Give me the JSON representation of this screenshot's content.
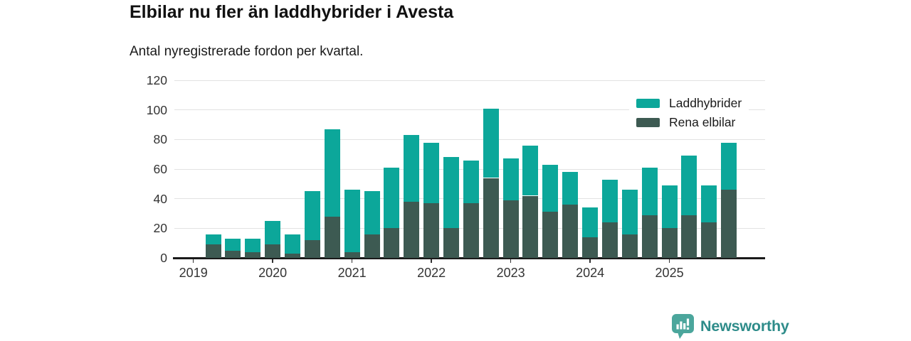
{
  "header": {
    "title": "Elbilar nu fler än laddhybrider i Avesta",
    "subtitle": "Antal nyregistrerade fordon per kvartal."
  },
  "chart_data": {
    "type": "bar",
    "stacked": true,
    "title": "Elbilar nu fler än laddhybrider i Avesta",
    "subtitle": "Antal nyregistrerade fordon per kvartal.",
    "ylabel": "",
    "xlabel": "",
    "categories": [
      "2019 Q1",
      "2019 Q2",
      "2019 Q3",
      "2019 Q4",
      "2020 Q1",
      "2020 Q2",
      "2020 Q3",
      "2020 Q4",
      "2021 Q1",
      "2021 Q2",
      "2021 Q3",
      "2021 Q4",
      "2022 Q1",
      "2022 Q2",
      "2022 Q3",
      "2022 Q4",
      "2023 Q1",
      "2023 Q2",
      "2023 Q3",
      "2023 Q4",
      "2024 Q1",
      "2024 Q2",
      "2024 Q3",
      "2024 Q4",
      "2025 Q1",
      "2025 Q2",
      "2025 Q3",
      "2025 Q4"
    ],
    "series": [
      {
        "name": "Laddhybrider",
        "color": "#0ca79a",
        "values": [
          0,
          7,
          8,
          9,
          16,
          13,
          33,
          59,
          42,
          29,
          41,
          45,
          41,
          48,
          29,
          47,
          28,
          34,
          32,
          22,
          20,
          29,
          30,
          32,
          29,
          40,
          25,
          32
        ]
      },
      {
        "name": "Rena elbilar",
        "color": "#3d5a52",
        "values": [
          0,
          9,
          5,
          4,
          9,
          3,
          12,
          28,
          4,
          16,
          20,
          38,
          37,
          20,
          37,
          54,
          39,
          42,
          31,
          36,
          14,
          24,
          16,
          29,
          20,
          29,
          24,
          46
        ]
      }
    ],
    "stack_order_bottom_to_top": [
      "Rena elbilar",
      "Laddhybrider"
    ],
    "stack_totals": [
      0,
      16,
      13,
      13,
      25,
      16,
      45,
      87,
      46,
      45,
      61,
      83,
      78,
      68,
      66,
      101,
      67,
      76,
      63,
      58,
      34,
      53,
      46,
      61,
      49,
      69,
      49,
      78
    ],
    "ylim": [
      0,
      120
    ],
    "yticks": [
      0,
      20,
      40,
      60,
      80,
      100,
      120
    ],
    "year_tick_labels": [
      "2019",
      "2020",
      "2021",
      "2022",
      "2023",
      "2024",
      "2025"
    ],
    "grid": "horizontal",
    "legend_position": "top-right-inside"
  },
  "footer": {
    "brand": "Newsworthy"
  },
  "colors": {
    "laddhybrider": "#0ca79a",
    "rena_elbilar": "#3d5a52",
    "gridline": "#e2e2e2",
    "axis": "#1a1a1a",
    "logo_icon": "#4ba69c",
    "logo_text": "#2e8c8a"
  }
}
